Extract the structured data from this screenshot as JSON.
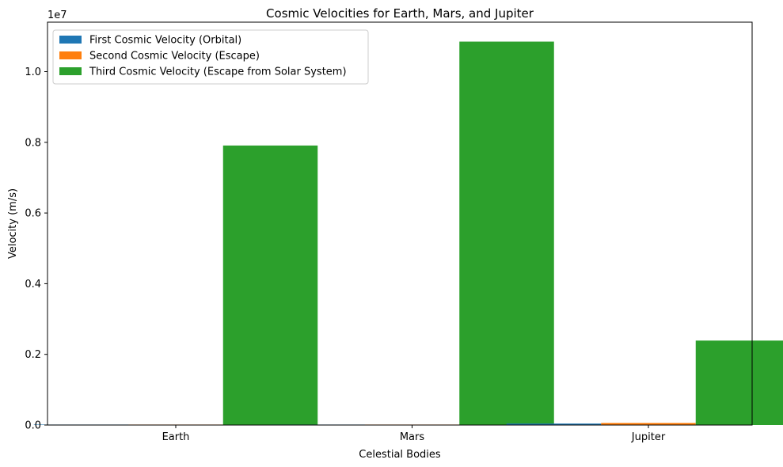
{
  "chart_data": {
    "type": "bar",
    "title": "Cosmic Velocities for Earth, Mars, and Jupiter",
    "xlabel": "Celestial Bodies",
    "ylabel": "Velocity (m/s)",
    "y_multiplier_label": "1e7",
    "ylim": [
      0,
      11400000.0
    ],
    "yticks": [
      0,
      2000000,
      4000000,
      6000000,
      8000000,
      10000000
    ],
    "ytick_labels": [
      "0.0",
      "0.2",
      "0.4",
      "0.6",
      "0.8",
      "1.0"
    ],
    "categories": [
      "Earth",
      "Mars",
      "Jupiter"
    ],
    "series": [
      {
        "name": "First Cosmic Velocity (Orbital)",
        "color": "#1f77b4",
        "values": [
          7900,
          3550,
          42100
        ]
      },
      {
        "name": "Second Cosmic Velocity (Escape)",
        "color": "#ff7f0e",
        "values": [
          11200,
          5030,
          59500
        ]
      },
      {
        "name": "Third Cosmic Velocity (Escape from Solar System)",
        "color": "#2ca02c",
        "values": [
          7910000,
          10850000,
          2390000
        ]
      }
    ],
    "legend_position": "top-left",
    "grid": false
  }
}
